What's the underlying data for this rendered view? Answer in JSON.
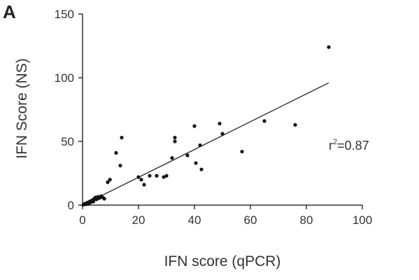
{
  "panel_label": "A",
  "chart_data": {
    "type": "scatter",
    "title": "",
    "xlabel": "IFN score (qPCR)",
    "ylabel": "IFN Score (NS)",
    "xlim": [
      0,
      100
    ],
    "ylim": [
      0,
      150
    ],
    "xticks": [
      0,
      20,
      40,
      60,
      80,
      100
    ],
    "yticks": [
      0,
      50,
      100,
      150
    ],
    "grid": false,
    "annotation": {
      "prefix": "r",
      "sup": "2",
      "suffix": "=0.87"
    },
    "regression_line": {
      "x": [
        0,
        88
      ],
      "y": [
        0,
        96
      ]
    },
    "points": [
      {
        "x": 0.3,
        "y": 0.3
      },
      {
        "x": 0.6,
        "y": 0.8
      },
      {
        "x": 0.9,
        "y": 1.2
      },
      {
        "x": 1.2,
        "y": 0.6
      },
      {
        "x": 1.5,
        "y": 1.5
      },
      {
        "x": 1.8,
        "y": 2.0
      },
      {
        "x": 2.1,
        "y": 1.0
      },
      {
        "x": 2.4,
        "y": 2.5
      },
      {
        "x": 2.7,
        "y": 3.0
      },
      {
        "x": 3.0,
        "y": 2.2
      },
      {
        "x": 3.3,
        "y": 3.5
      },
      {
        "x": 3.6,
        "y": 4.0
      },
      {
        "x": 3.9,
        "y": 2.8
      },
      {
        "x": 4.2,
        "y": 5.0
      },
      {
        "x": 4.6,
        "y": 6.0
      },
      {
        "x": 5.0,
        "y": 4.5
      },
      {
        "x": 5.5,
        "y": 6.5
      },
      {
        "x": 6.0,
        "y": 5.5
      },
      {
        "x": 6.6,
        "y": 7.0
      },
      {
        "x": 7.2,
        "y": 6.0
      },
      {
        "x": 7.8,
        "y": 5.0
      },
      {
        "x": 9.0,
        "y": 18.0
      },
      {
        "x": 9.8,
        "y": 20.0
      },
      {
        "x": 12.0,
        "y": 41.0
      },
      {
        "x": 13.5,
        "y": 31.0
      },
      {
        "x": 14.0,
        "y": 53.0
      },
      {
        "x": 20.0,
        "y": 22.0
      },
      {
        "x": 21.0,
        "y": 20.0
      },
      {
        "x": 22.0,
        "y": 16.0
      },
      {
        "x": 24.0,
        "y": 23.0
      },
      {
        "x": 26.5,
        "y": 23.0
      },
      {
        "x": 29.0,
        "y": 22.0
      },
      {
        "x": 30.0,
        "y": 23.0
      },
      {
        "x": 32.0,
        "y": 37.0
      },
      {
        "x": 33.0,
        "y": 53.0
      },
      {
        "x": 33.0,
        "y": 50.0
      },
      {
        "x": 37.5,
        "y": 39.0
      },
      {
        "x": 40.0,
        "y": 62.0
      },
      {
        "x": 40.5,
        "y": 33.0
      },
      {
        "x": 42.0,
        "y": 47.0
      },
      {
        "x": 42.5,
        "y": 28.0
      },
      {
        "x": 49.0,
        "y": 64.0
      },
      {
        "x": 50.0,
        "y": 56.0
      },
      {
        "x": 57.0,
        "y": 42.0
      },
      {
        "x": 65.0,
        "y": 66.0
      },
      {
        "x": 76.0,
        "y": 63.0
      },
      {
        "x": 88.0,
        "y": 124.0
      }
    ]
  }
}
